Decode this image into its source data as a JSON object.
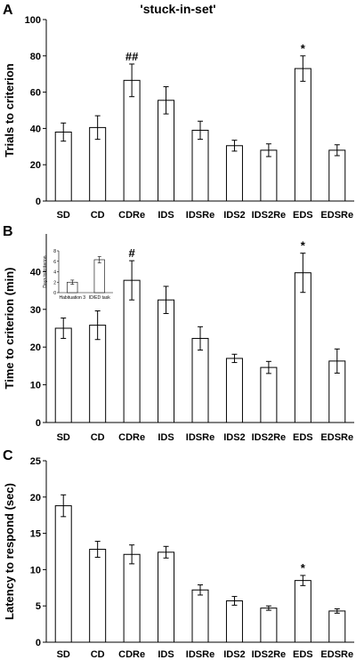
{
  "figure_title": "'stuck-in-set'",
  "chart_data": [
    {
      "panel": "A",
      "type": "bar",
      "ylabel": "Trials to criterion",
      "ylim": [
        0,
        100
      ],
      "yticks": [
        0,
        20,
        40,
        60,
        80,
        100
      ],
      "categories": [
        "SD",
        "CD",
        "CDRe",
        "IDS",
        "IDSRe",
        "IDS2",
        "IDS2Re",
        "EDS",
        "EDSRe"
      ],
      "values": [
        38,
        40.5,
        66.5,
        55.5,
        39,
        30.5,
        28,
        73,
        28
      ],
      "errors": [
        5,
        6.5,
        9,
        7.5,
        5,
        3,
        3.5,
        7,
        3
      ],
      "annotations": [
        "",
        "",
        "##",
        "",
        "",
        "",
        "",
        "*",
        ""
      ]
    },
    {
      "panel": "B",
      "type": "bar",
      "ylabel": "Time to criterion (min)",
      "ylim": [
        0,
        50
      ],
      "yticks": [
        0,
        10,
        20,
        30,
        40
      ],
      "categories": [
        "SD",
        "CD",
        "CDRe",
        "IDS",
        "IDSRe",
        "IDS2",
        "IDS2Re",
        "EDS",
        "EDSRe"
      ],
      "values": [
        25,
        25.8,
        37.7,
        32.5,
        22.3,
        17,
        14.6,
        39.7,
        16.3
      ],
      "errors": [
        2.7,
        3.8,
        5.2,
        3.6,
        3.1,
        1.1,
        1.6,
        5.2,
        3.2
      ],
      "annotations": [
        "",
        "",
        "#",
        "",
        "",
        "",
        "",
        "*",
        ""
      ],
      "inset": {
        "type": "bar",
        "ylabel": "Days to criterion",
        "ylim": [
          0,
          8
        ],
        "yticks": [
          0,
          2,
          4,
          6,
          8
        ],
        "categories": [
          "Habituation 3",
          "ID/ED task"
        ],
        "values": [
          2,
          6.3
        ],
        "errors": [
          0.4,
          0.6
        ]
      }
    },
    {
      "panel": "C",
      "type": "bar",
      "ylabel": "Latency to respond (sec)",
      "ylim": [
        0,
        25
      ],
      "yticks": [
        0,
        5,
        10,
        15,
        20,
        25
      ],
      "categories": [
        "SD",
        "CD",
        "CDRe",
        "IDS",
        "IDSRe",
        "IDS2",
        "IDS2Re",
        "EDS",
        "EDSRe"
      ],
      "values": [
        18.8,
        12.8,
        12.1,
        12.4,
        7.2,
        5.7,
        4.7,
        8.5,
        4.3
      ],
      "errors": [
        1.5,
        1.1,
        1.3,
        0.8,
        0.7,
        0.6,
        0.3,
        0.7,
        0.3
      ],
      "annotations": [
        "",
        "",
        "",
        "",
        "",
        "",
        "",
        "*",
        ""
      ]
    }
  ]
}
